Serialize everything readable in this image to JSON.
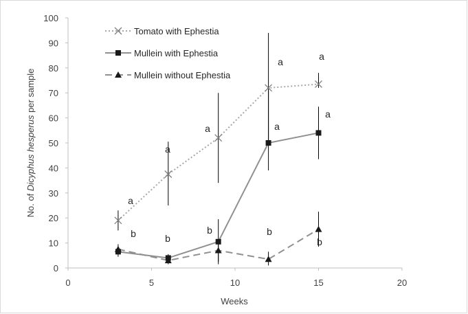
{
  "chart_data": {
    "type": "line",
    "title": "",
    "xlabel": "Weeks",
    "ylabel_parts": [
      "No. of ",
      "Dicyphus hesperus",
      " per sample"
    ],
    "xlim": [
      0,
      20
    ],
    "ylim": [
      0,
      100
    ],
    "xticks": [
      0,
      5,
      10,
      15,
      20
    ],
    "yticks": [
      0,
      10,
      20,
      30,
      40,
      50,
      60,
      70,
      80,
      90,
      100
    ],
    "grid": false,
    "legend_position": "top-left",
    "x": [
      3,
      6,
      9,
      12,
      15
    ],
    "series": [
      {
        "name": "Tomato with Ephestia",
        "marker": "x",
        "line_style": "dotted",
        "color": "#a6a6a6",
        "values": [
          19,
          37.5,
          52,
          72,
          73.5
        ],
        "error_low": [
          15,
          25,
          34,
          51,
          72
        ],
        "error_high": [
          23,
          50.5,
          70,
          94,
          78
        ],
        "labels": [
          "a",
          "a",
          "a",
          "a",
          "a"
        ]
      },
      {
        "name": "Mullein with Ephestia",
        "marker": "square",
        "line_style": "solid",
        "color": "#909090",
        "values": [
          6.5,
          4,
          10.5,
          50,
          54
        ],
        "error_low": [
          4.5,
          2.5,
          2.5,
          39,
          43.5
        ],
        "error_high": [
          8.5,
          5.5,
          19.5,
          72,
          64.5
        ],
        "labels": [
          "b",
          "b",
          "b",
          "a",
          "a"
        ]
      },
      {
        "name": "Mullein without Ephestia",
        "marker": "triangle",
        "line_style": "dashed",
        "color": "#909090",
        "values": [
          7.5,
          3,
          7,
          3.5,
          15.5
        ],
        "error_low": [
          5.5,
          1.5,
          1.5,
          1,
          8.5
        ],
        "error_high": [
          9.5,
          4.5,
          10,
          6.5,
          22.5
        ],
        "labels": [
          "b",
          "b",
          "b",
          "b",
          "b"
        ]
      }
    ]
  }
}
